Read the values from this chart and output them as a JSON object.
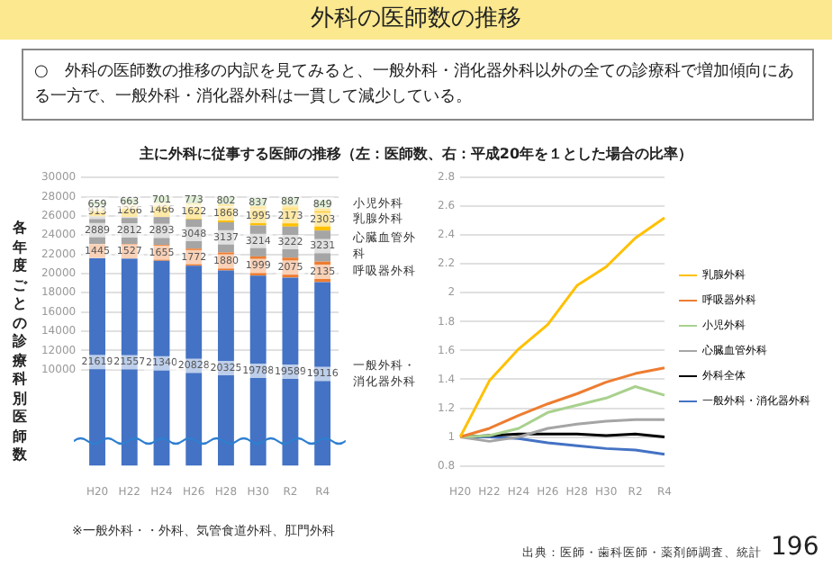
{
  "chart_data": [
    {
      "type": "bar",
      "stacked": true,
      "title": "外科の医師数の推移",
      "subtitle": "○　外科の医師数の推移の内訳を見てみると、一般外科・消化器外科以外の全ての診療科で増加傾向にある一方で、一般外科・消化器外科は一貫して減少している。",
      "ylabel": "各年度ごとの診療科別医師数",
      "annotations": [
        "主に外科に従事する医師の推移（左：医師数、右：平成20年を１とした場合の比率）",
        "※一般外科・・外科、気管食道外科、肛門外科"
      ],
      "categories": [
        "H20",
        "H22",
        "H24",
        "H26",
        "H28",
        "H30",
        "R2",
        "R4"
      ],
      "series": [
        {
          "name": "一般外科・消化器外科",
          "color": "#4472c4",
          "values": [
            21619,
            21557,
            21340,
            20828,
            20325,
            19788,
            19589,
            19116
          ]
        },
        {
          "name": "呼吸器外科",
          "color": "#ed7d31",
          "values": [
            1445,
            1527,
            1655,
            1772,
            1880,
            1999,
            2075,
            2135
          ]
        },
        {
          "name": "心臓血管外科",
          "color": "#a5a5a5",
          "values": [
            2889,
            2812,
            2893,
            3048,
            3137,
            3214,
            3222,
            3231
          ]
        },
        {
          "name": "乳腺外科",
          "color": "#ffc000",
          "values": [
            913,
            1266,
            1466,
            1622,
            1868,
            1995,
            2173,
            2303
          ]
        },
        {
          "name": "小児外科",
          "color": "#a9d18e",
          "values": [
            659,
            663,
            701,
            773,
            802,
            837,
            887,
            849
          ]
        }
      ],
      "ylim": [
        0,
        30000
      ],
      "yticks": [
        10000,
        12000,
        14000,
        16000,
        18000,
        20000,
        22000,
        24000,
        26000,
        28000,
        30000
      ],
      "grid": "y",
      "data_labels": true
    },
    {
      "type": "line",
      "annotations": [
        "出典：医師・歯科医師・薬剤師調査、統計",
        "196"
      ],
      "categories": [
        "H20",
        "H22",
        "H24",
        "H26",
        "H28",
        "H30",
        "R2",
        "R4"
      ],
      "series": [
        {
          "name": "乳腺外科",
          "color": "#ffc000",
          "values": [
            1,
            1.39,
            1.61,
            1.78,
            2.05,
            2.18,
            2.38,
            2.52
          ]
        },
        {
          "name": "呼吸器外科",
          "color": "#ed7d31",
          "values": [
            1,
            1.06,
            1.15,
            1.23,
            1.3,
            1.38,
            1.44,
            1.48
          ]
        },
        {
          "name": "小児外科",
          "color": "#a9d18e",
          "values": [
            1,
            1.01,
            1.06,
            1.17,
            1.22,
            1.27,
            1.35,
            1.29
          ]
        },
        {
          "name": "心臓血管外科",
          "color": "#a5a5a5",
          "values": [
            1,
            0.97,
            1,
            1.06,
            1.09,
            1.11,
            1.12,
            1.12
          ]
        },
        {
          "name": "外科全体",
          "color": "#000000",
          "values": [
            1,
            1.01,
            1.02,
            1.02,
            1.02,
            1.01,
            1.02,
            1
          ]
        },
        {
          "name": "一般外科・消化器外科",
          "color": "#4472c4",
          "values": [
            1,
            1,
            0.99,
            0.96,
            0.94,
            0.92,
            0.91,
            0.88
          ]
        }
      ],
      "ylim": [
        0.8,
        2.8
      ],
      "yticks": [
        0.8,
        1,
        1.2,
        1.4,
        1.6,
        1.8,
        2,
        2.2,
        2.4,
        2.6,
        2.8
      ],
      "grid": "y",
      "legend": "right",
      "marker": "none",
      "line_style": "solid"
    }
  ]
}
